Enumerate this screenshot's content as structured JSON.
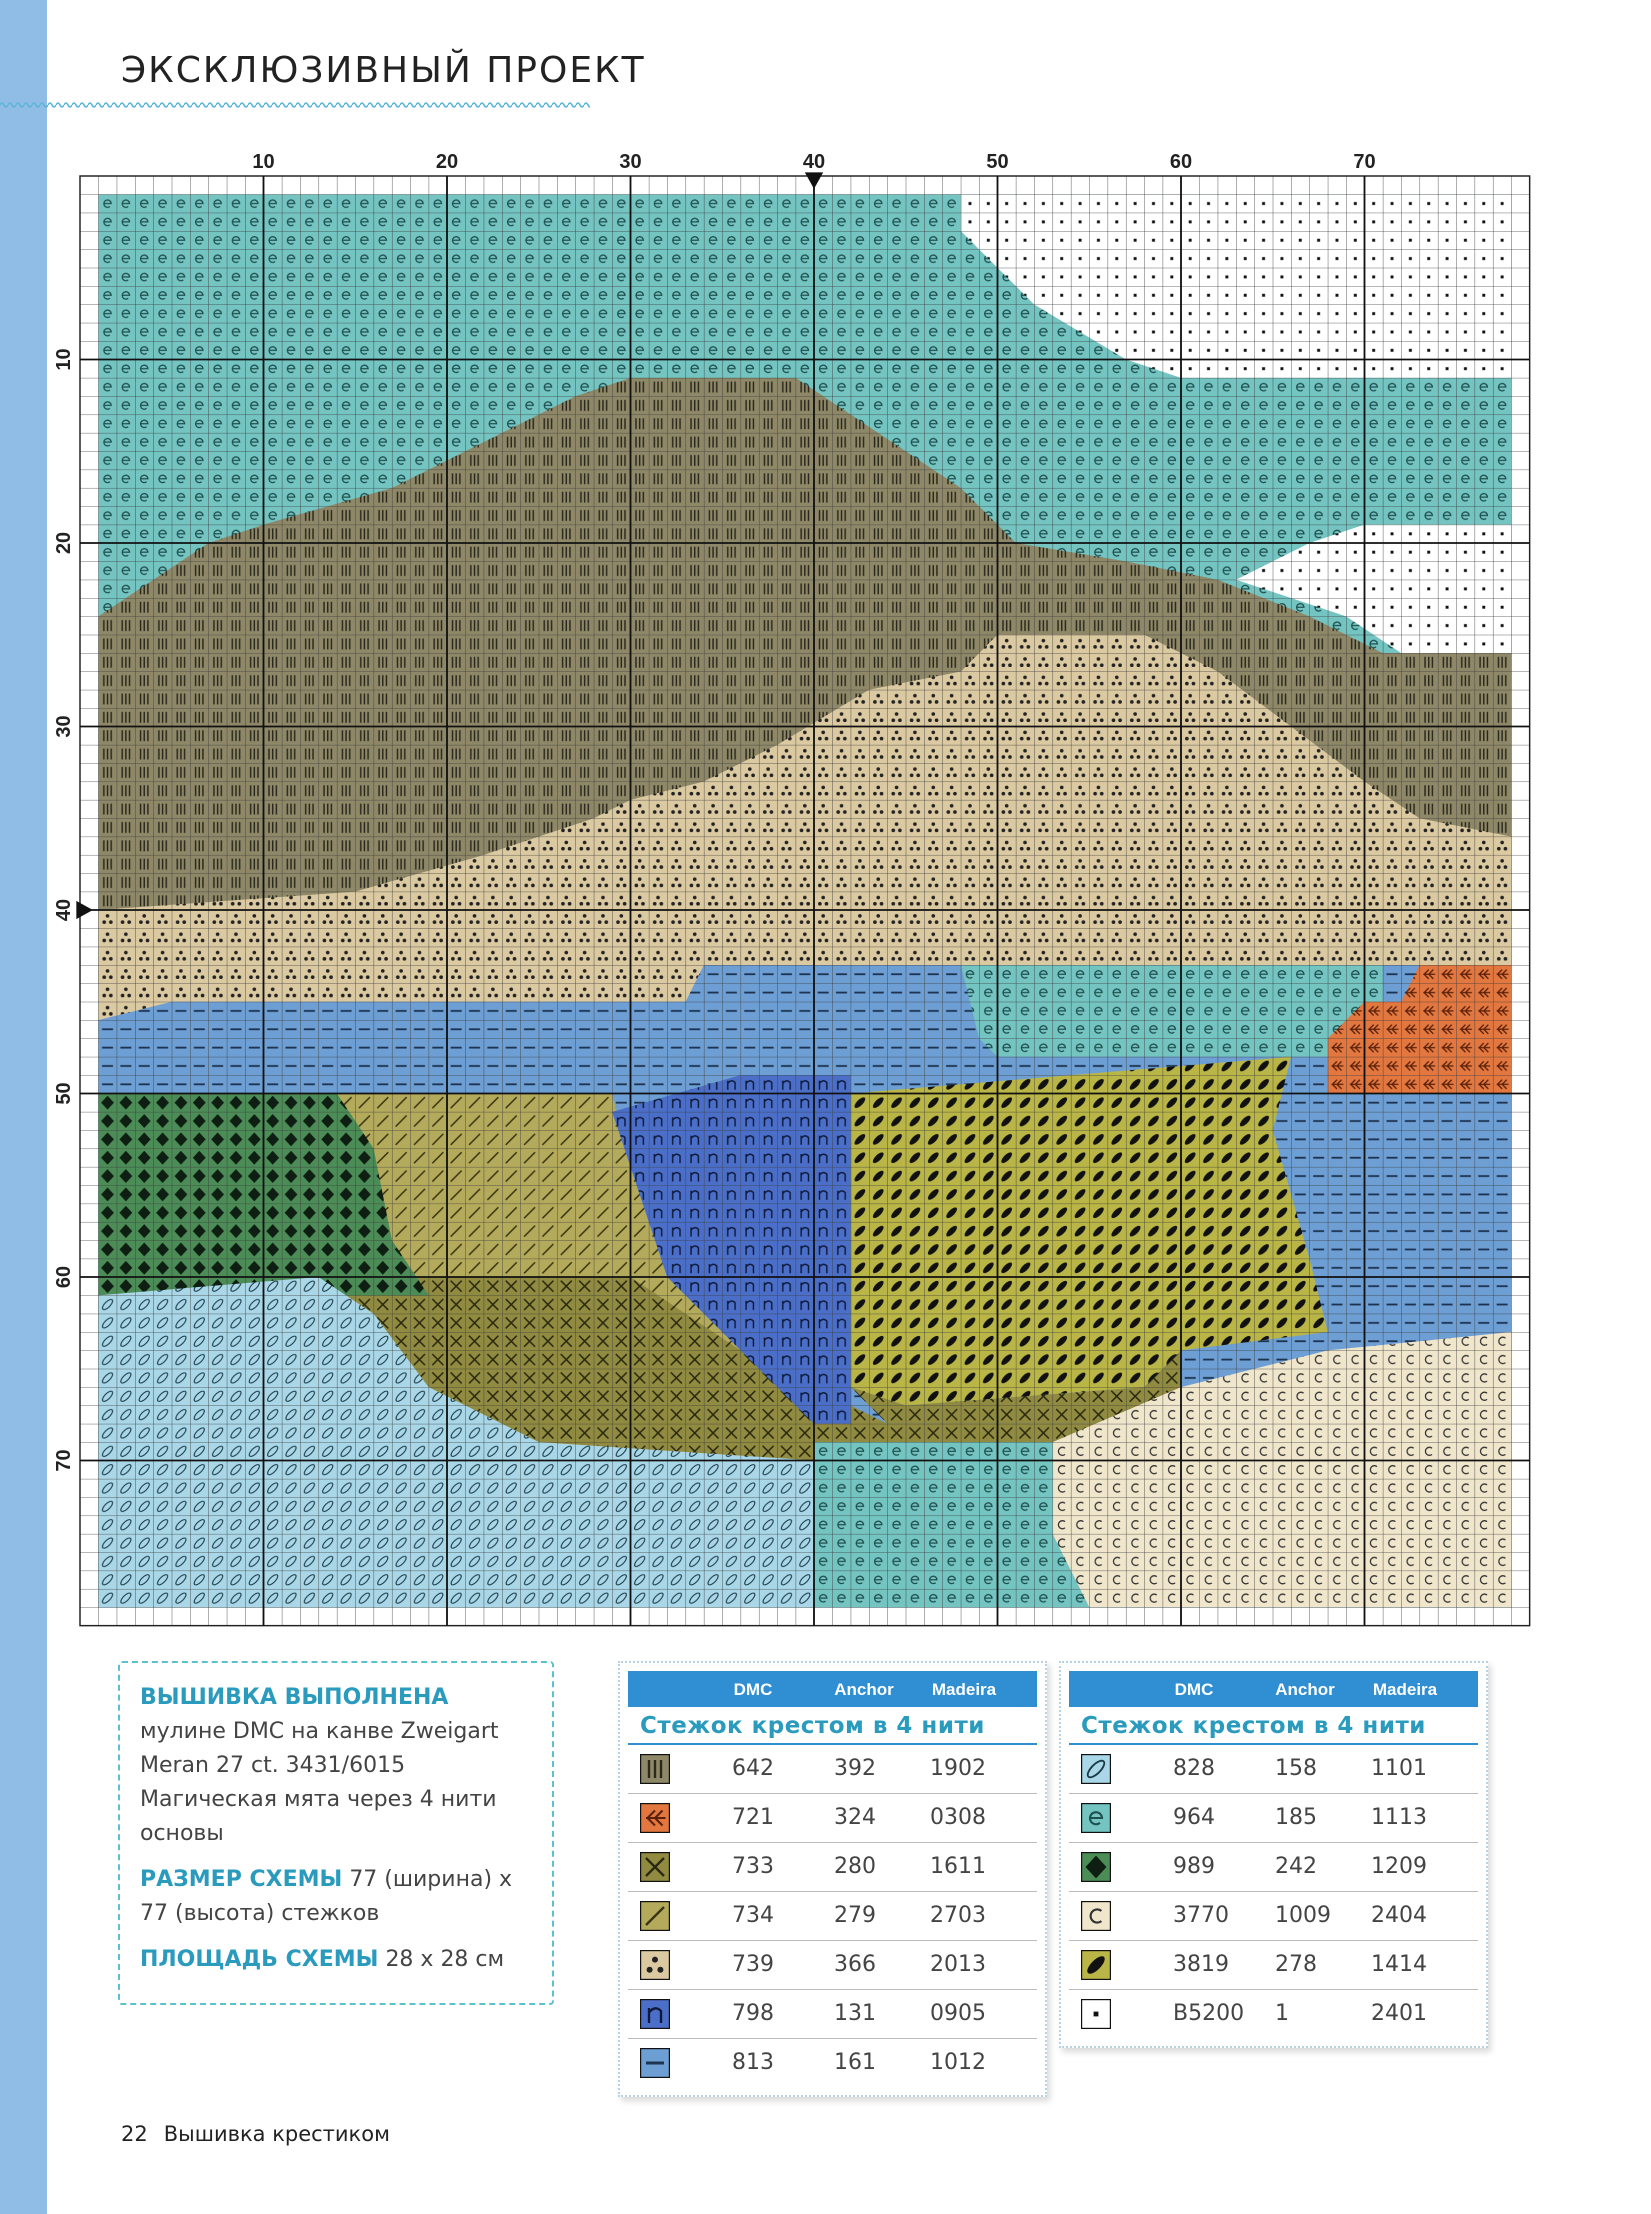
{
  "header": {
    "title": "ЭКСКЛЮЗИВНЫЙ ПРОЕКТ"
  },
  "grid": {
    "col_labels": [
      10,
      20,
      30,
      40,
      50,
      60,
      70
    ],
    "row_labels": [
      10,
      20,
      30,
      40,
      50,
      60,
      70
    ]
  },
  "info": [
    {
      "lead": "ВЫШИВКА ВЫПОЛНЕНА",
      "text": "мулине DMC на канве  Zweigart Meran 27 ct. 3431/6015 Магическая мята через 4 нити основы"
    },
    {
      "lead": "РАЗМЕР СХЕМЫ",
      "text": "77 (ширина) x 77 (высота) стежков"
    },
    {
      "lead": "ПЛОЩАДЬ СХЕМЫ",
      "text": "28 x 28 см"
    }
  ],
  "legend_tables": [
    {
      "columns": [
        "DMC",
        "Anchor",
        "Madeira"
      ],
      "subtitle": "Стежок крестом в 4 нити",
      "rows": [
        [
          "642",
          "392",
          "1902"
        ],
        [
          "721",
          "324",
          "0308"
        ],
        [
          "733",
          "280",
          "1611"
        ],
        [
          "734",
          "279",
          "2703"
        ],
        [
          "739",
          "366",
          "2013"
        ],
        [
          "798",
          "131",
          "0905"
        ],
        [
          "813",
          "161",
          "1012"
        ]
      ]
    },
    {
      "columns": [
        "DMC",
        "Anchor",
        "Madeira"
      ],
      "subtitle": "Стежок крестом в 4 нити",
      "rows": [
        [
          "828",
          "158",
          "1101"
        ],
        [
          "964",
          "185",
          "1113"
        ],
        [
          "989",
          "242",
          "1209"
        ],
        [
          "3770",
          "1009",
          "2404"
        ],
        [
          "3819",
          "278",
          "1414"
        ],
        [
          "B5200",
          "1",
          "2401"
        ]
      ]
    }
  ],
  "footer": {
    "page": "22",
    "section": "Вышивка крестиком"
  }
}
